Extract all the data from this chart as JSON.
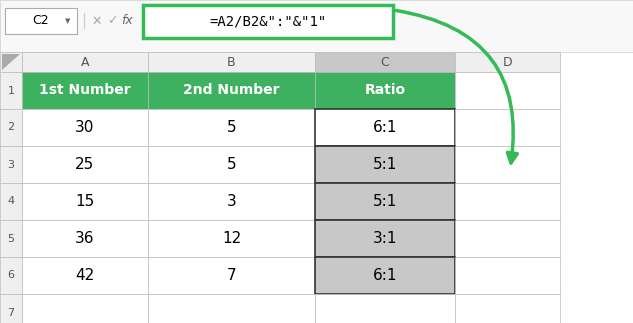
{
  "formula_bar_cell": "C2",
  "formula_bar_formula": "=A2/B2&\":\"&\"1\"",
  "formula_display": "=A2/B2&\":\"&\"1\"",
  "col_headers": [
    "A",
    "B",
    "C",
    "D"
  ],
  "row_labels": [
    "1",
    "2",
    "3",
    "4",
    "5",
    "6",
    "7"
  ],
  "header_row": [
    "1st Number",
    "2nd Number",
    "Ratio"
  ],
  "col_a": [
    30,
    25,
    15,
    36,
    42
  ],
  "col_b": [
    5,
    5,
    3,
    12,
    7
  ],
  "col_c": [
    "6:1",
    "5:1",
    "5:1",
    "3:1",
    "6:1"
  ],
  "green": "#3DB160",
  "light_gray": "#C8C8C8",
  "white": "#FFFFFF",
  "col_hdr_bg": "#EFEFEF",
  "col_hdr_selected": "#C8C8C8",
  "row_hdr_bg": "#EFEFEF",
  "grid_color": "#BBBBBB",
  "dark_border": "#555555",
  "formula_green": "#33BB55",
  "arrow_green": "#33BB55",
  "fb_bg": "#F8F8F8"
}
